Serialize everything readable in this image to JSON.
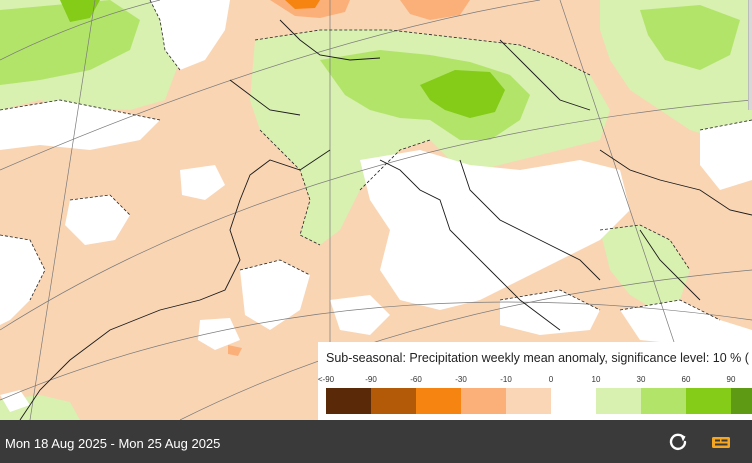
{
  "legend": {
    "title": "Sub-seasonal: Precipitation weekly mean anomaly, significance level: 10 % (",
    "ticks": [
      "<-90",
      "-90",
      "-60",
      "-30",
      "-10",
      "0",
      "10",
      "30",
      "60",
      "90"
    ],
    "colors": [
      "#5a2a08",
      "#b35a08",
      "#f58410",
      "#fbb07a",
      "#fbd6b6",
      "#ffffff",
      "#d8f0b0",
      "#b2e46a",
      "#84cc18",
      "#5e9a14",
      "#3e7a08"
    ]
  },
  "footer": {
    "date_range": "Mon 18 Aug 2025 - Mon 25 Aug 2025",
    "refresh_icon": "refresh-icon",
    "layers_icon": "layers-icon"
  },
  "map_colors": {
    "land_base": "#f9d5b4",
    "no_signal": "#ffffff",
    "wet_light": "#d8f0b0",
    "wet_mid": "#b2e46a",
    "wet_strong": "#84cc18",
    "dry_mid": "#fbb07a",
    "dry_strong": "#f58410"
  }
}
